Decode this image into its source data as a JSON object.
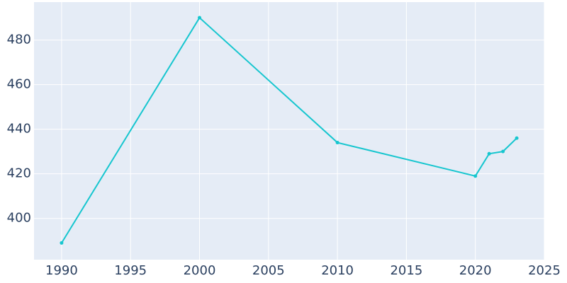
{
  "chart_data": {
    "type": "line",
    "x": [
      1990,
      2000,
      2010,
      2020,
      2021,
      2022,
      2023
    ],
    "series": [
      {
        "color": "#17c6cf",
        "values": [
          389,
          490,
          434,
          419,
          429,
          430,
          436
        ]
      }
    ],
    "xlim": [
      1988,
      2025
    ],
    "xticks": [
      1990,
      1995,
      2000,
      2005,
      2010,
      2015,
      2020,
      2025
    ],
    "ylim": [
      381.5,
      497
    ],
    "yticks": [
      400,
      420,
      440,
      460,
      480
    ],
    "grid": true
  }
}
